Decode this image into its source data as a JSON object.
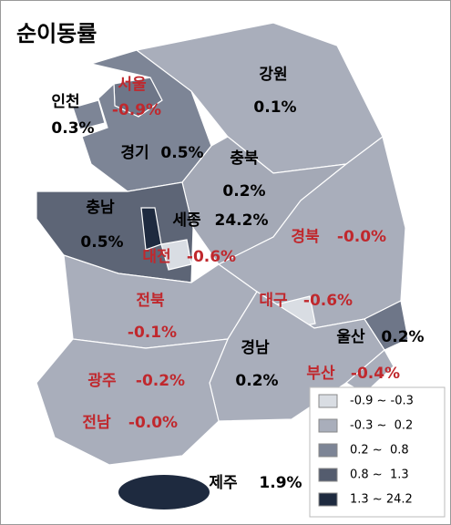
{
  "title": "순이동률",
  "regions": [
    {
      "name": "서울",
      "value": -0.9,
      "value_label": "-0.9%",
      "color": "#6e7688",
      "label_color": "#c0282d"
    },
    {
      "name": "인천",
      "value": 0.3,
      "value_label": "0.3%",
      "color": "#7d8596",
      "label_color": "#000000"
    },
    {
      "name": "경기",
      "value": 0.5,
      "value_label": "0.5%",
      "color": "#7d8596",
      "label_color": "#000000"
    },
    {
      "name": "강원",
      "value": 0.1,
      "value_label": "0.1%",
      "color": "#a9aebb",
      "label_color": "#000000"
    },
    {
      "name": "충북",
      "value": 0.2,
      "value_label": "0.2%",
      "color": "#a4a9b6",
      "label_color": "#000000"
    },
    {
      "name": "충남",
      "value": 0.5,
      "value_label": "0.5%",
      "color": "#5d6576",
      "label_color": "#000000"
    },
    {
      "name": "세종",
      "value": 24.2,
      "value_label": "24.2%",
      "color": "#1e2a3f",
      "label_color": "#000000"
    },
    {
      "name": "대전",
      "value": -0.6,
      "value_label": "-0.6%",
      "color": "#d9dde3",
      "label_color": "#c0282d"
    },
    {
      "name": "경북",
      "value": -0.0,
      "value_label": "-0.0%",
      "color": "#a9aebb",
      "label_color": "#c0282d"
    },
    {
      "name": "전북",
      "value": -0.1,
      "value_label": "-0.1%",
      "color": "#a9aebb",
      "label_color": "#c0282d"
    },
    {
      "name": "대구",
      "value": -0.6,
      "value_label": "-0.6%",
      "color": "#d9dde3",
      "label_color": "#c0282d"
    },
    {
      "name": "울산",
      "value": 0.2,
      "value_label": "0.2%",
      "color": "#6e7688",
      "label_color": "#000000"
    },
    {
      "name": "경남",
      "value": 0.2,
      "value_label": "0.2%",
      "color": "#a9aebb",
      "label_color": "#000000"
    },
    {
      "name": "부산",
      "value": -0.4,
      "value_label": "-0.4%",
      "color": "#a9aebb",
      "label_color": "#c0282d"
    },
    {
      "name": "광주",
      "value": -0.2,
      "value_label": "-0.2%",
      "color": "#a9aebb",
      "label_color": "#c0282d"
    },
    {
      "name": "전남",
      "value": -0.0,
      "value_label": "-0.0%",
      "color": "#a9aebb",
      "label_color": "#c0282d"
    },
    {
      "name": "제주",
      "value": 1.9,
      "value_label": "1.9%",
      "color": "#1e2a3f",
      "label_color": "#000000"
    }
  ],
  "legend": [
    {
      "label": "-0.9 ~ -0.3",
      "color": "#d9dde3"
    },
    {
      "label": "-0.3 ~  0.2",
      "color": "#a9aebb"
    },
    {
      "label": "0.2 ~  0.8",
      "color": "#7d8596"
    },
    {
      "label": "0.8 ~  1.3",
      "color": "#545c6e"
    },
    {
      "label": "1.3 ~ 24.2",
      "color": "#1e2a3f"
    }
  ]
}
